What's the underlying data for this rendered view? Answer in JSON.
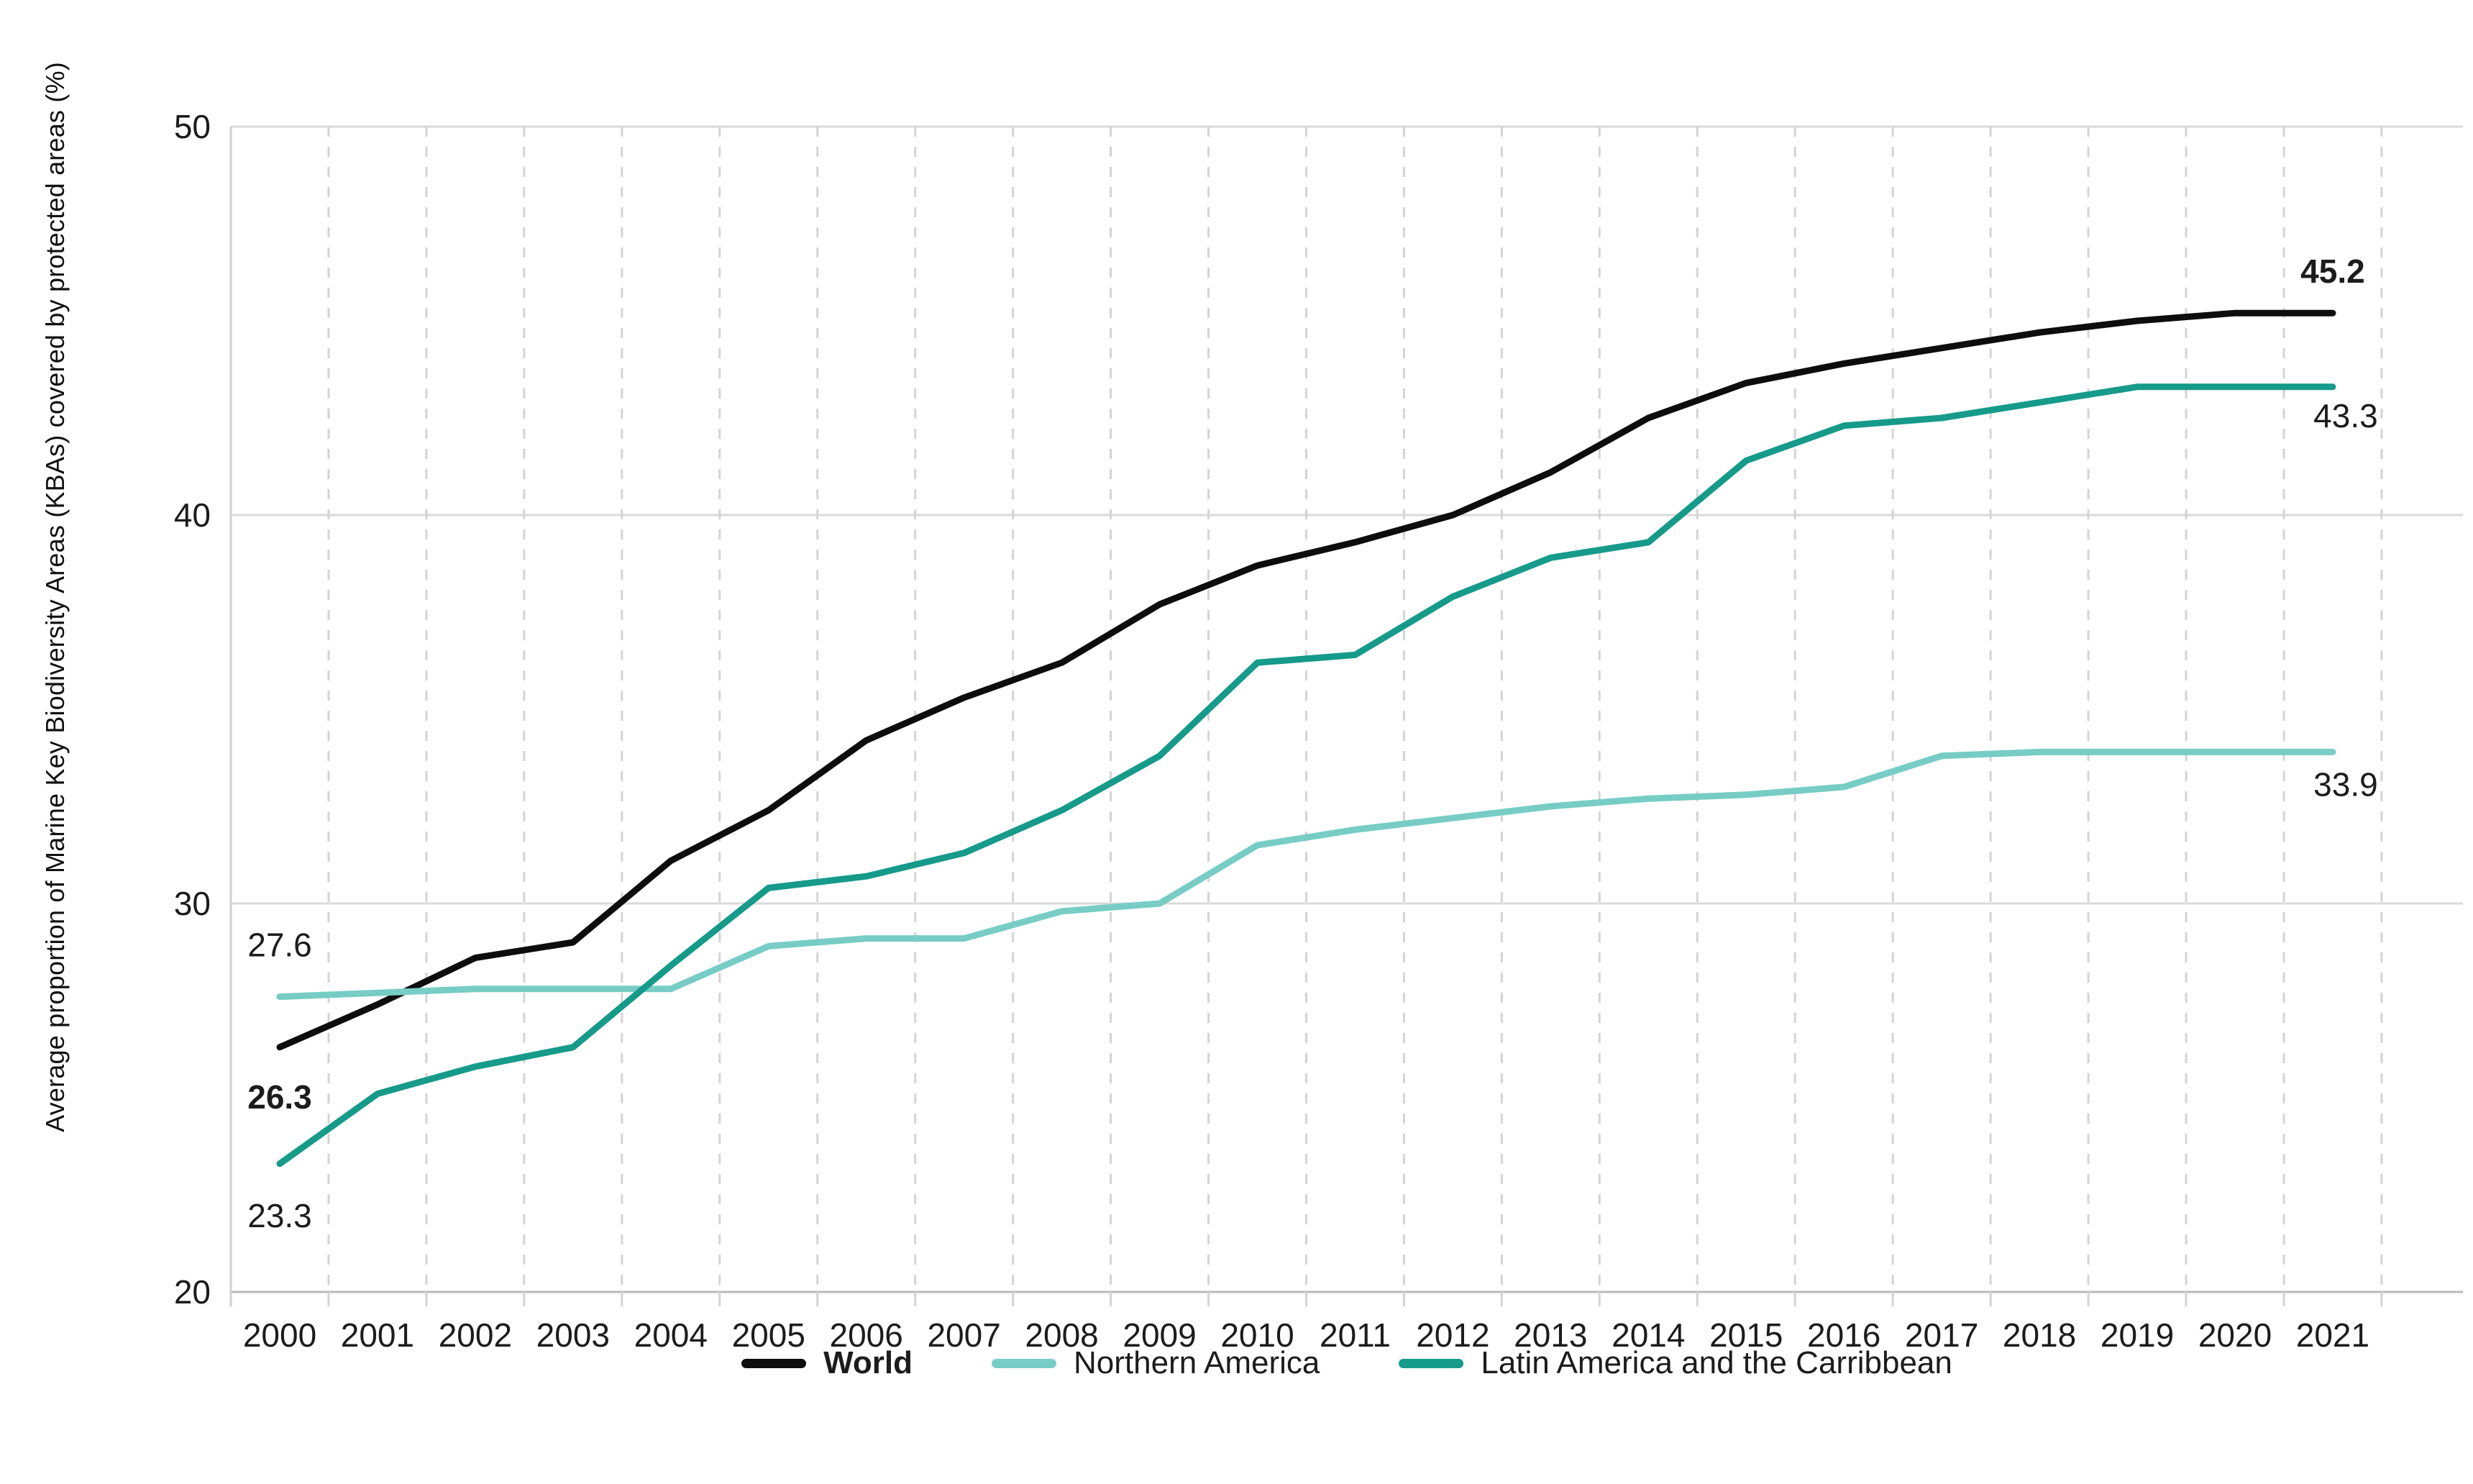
{
  "chart_data": {
    "type": "line",
    "title": "",
    "xlabel": "",
    "ylabel": "Average proportion  of Marine Key Biodiversity Areas (KBAs) covered by protected areas (%)",
    "x": [
      2000,
      2001,
      2002,
      2003,
      2004,
      2005,
      2006,
      2007,
      2008,
      2009,
      2010,
      2011,
      2012,
      2013,
      2014,
      2015,
      2016,
      2017,
      2018,
      2019,
      2020,
      2021
    ],
    "ylim": [
      20,
      50
    ],
    "yticks": [
      20,
      30,
      40,
      50
    ],
    "grid": {
      "horizontal": "solid",
      "vertical": "dashed, between years"
    },
    "legend_position": "bottom-center",
    "series": [
      {
        "name": "World",
        "color": "#0d0d0d",
        "bold": true,
        "values": [
          26.3,
          27.4,
          28.6,
          29.0,
          31.1,
          32.4,
          34.2,
          35.3,
          36.2,
          37.7,
          38.7,
          39.3,
          40.0,
          41.1,
          42.5,
          43.4,
          43.9,
          44.3,
          44.7,
          45.0,
          45.2,
          45.2
        ],
        "start_label": "26.3",
        "end_label": "45.2"
      },
      {
        "name": "Northern America",
        "color": "#77cdc5",
        "bold": false,
        "values": [
          27.6,
          27.7,
          27.8,
          27.8,
          27.8,
          28.9,
          29.1,
          29.1,
          29.8,
          30.0,
          31.5,
          31.9,
          32.2,
          32.5,
          32.7,
          32.8,
          33.0,
          33.8,
          33.9,
          33.9,
          33.9,
          33.9
        ],
        "start_label": "27.6",
        "end_label": "33.9"
      },
      {
        "name": "Latin America and the Carribbean",
        "color": "#169a8a",
        "bold": false,
        "values": [
          23.3,
          25.1,
          25.8,
          26.3,
          28.4,
          30.4,
          30.7,
          31.3,
          32.4,
          33.8,
          36.2,
          36.4,
          37.9,
          38.9,
          39.3,
          41.4,
          42.3,
          42.5,
          42.9,
          43.3,
          43.3,
          43.3
        ],
        "start_label": "23.3",
        "end_label": "43.3"
      }
    ]
  },
  "colors": {
    "gridline": "#dadada",
    "dashed_gridline": "#d4d4d4",
    "axis_line": "#b9b9b9",
    "plot_border": "#d0d0d0",
    "text": "#1c1c1c"
  }
}
